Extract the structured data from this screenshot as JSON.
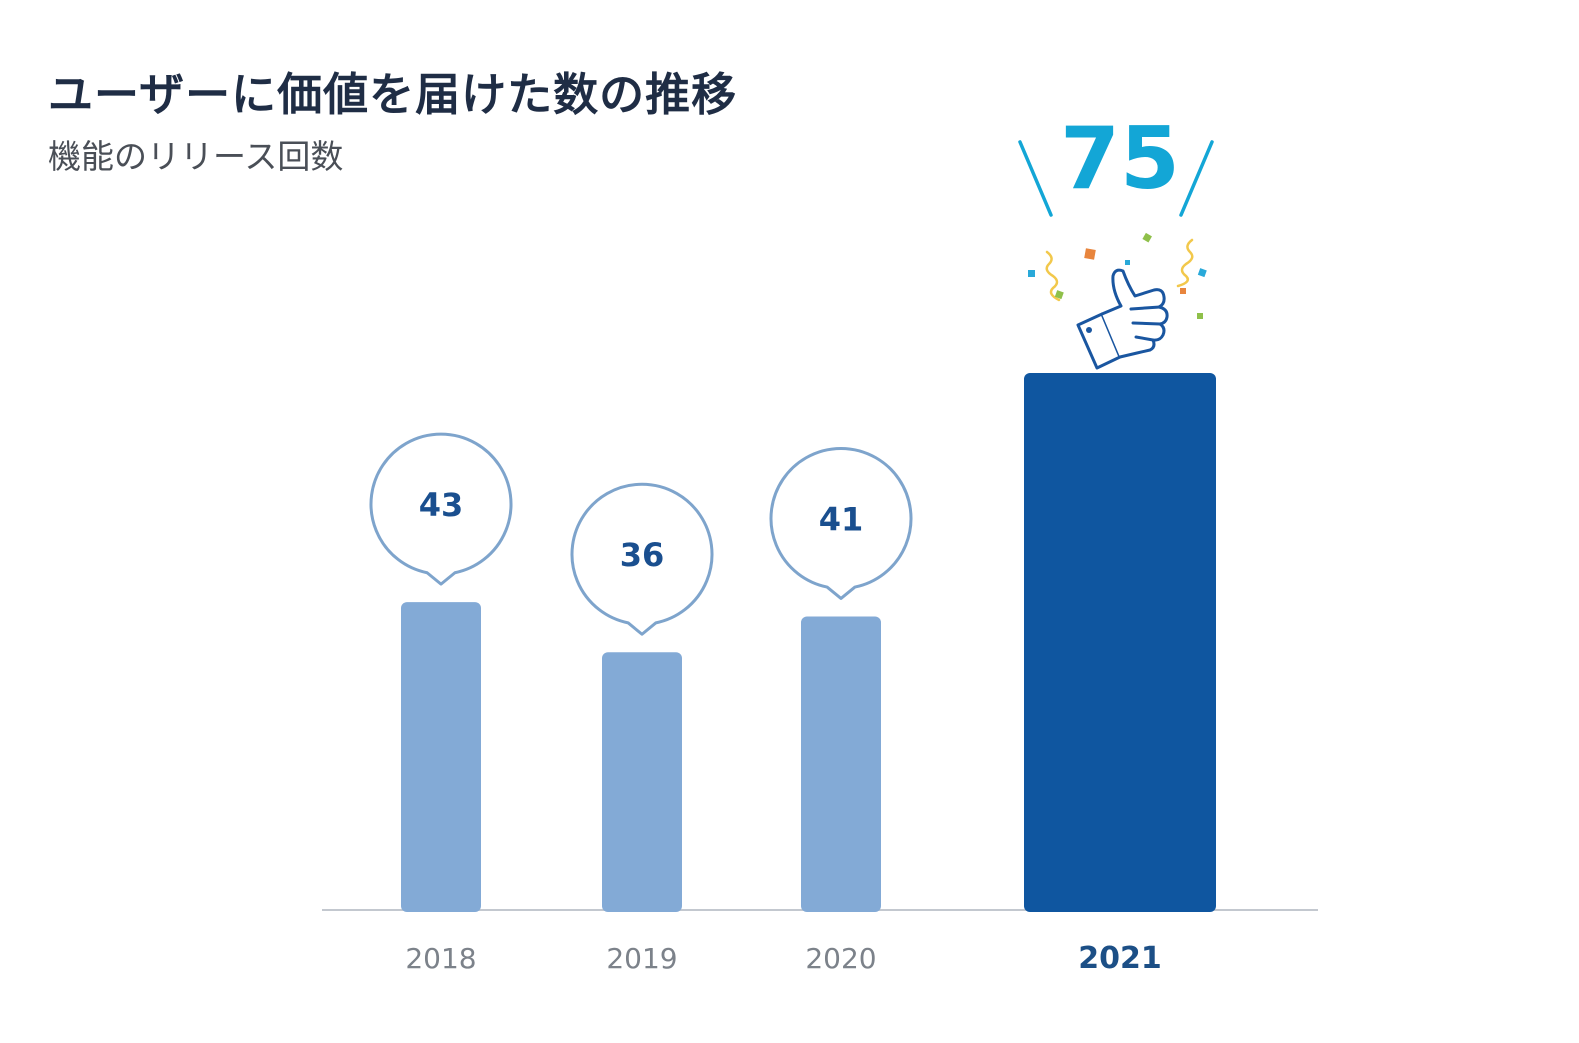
{
  "header": {
    "title": "ユーザーに価値を届けた数の推移",
    "subtitle": "機能のリリース回数"
  },
  "colors": {
    "bar_regular": "#83aad6",
    "bar_highlight": "#0f56a0",
    "bubble_stroke": "#7ea4cc",
    "value_text": "#1a4f8f",
    "highlight_value": "#13a6d6",
    "axis": "#c3c8cf",
    "tick_regular": "#7c828a",
    "tick_highlight": "#1c4f86"
  },
  "chart_data": {
    "type": "bar",
    "categories": [
      "2018",
      "2019",
      "2020",
      "2021"
    ],
    "values": [
      43,
      36,
      41,
      75
    ],
    "data_labels": [
      "43",
      "36",
      "41",
      "75"
    ],
    "highlight_category": "2021",
    "decoration": "thumbs-up-icon with confetti above highlighted bar",
    "xlabel": "",
    "ylabel": "",
    "ylim": [
      0,
      75
    ],
    "grid": false,
    "legend": "none"
  }
}
